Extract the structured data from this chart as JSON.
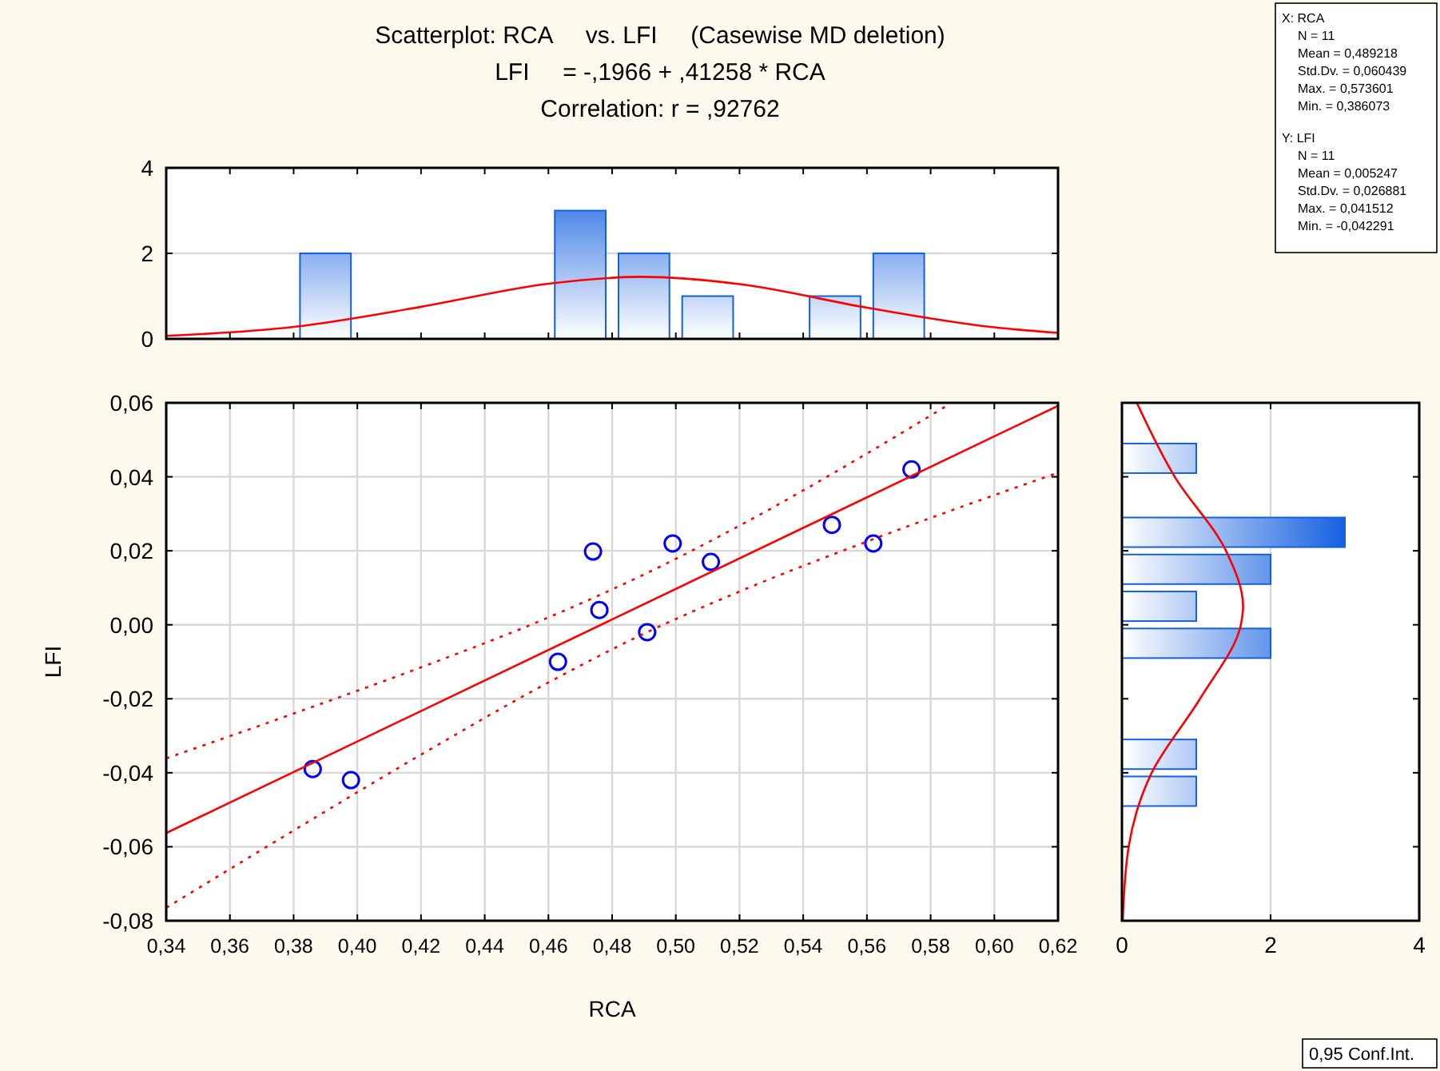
{
  "chart_data": [
    {
      "type": "scatter",
      "xlabel": "RCA",
      "ylabel": "LFI",
      "xlim": [
        0.34,
        0.62
      ],
      "xticks": [
        {
          "value": 0.34,
          "label": "0,34"
        },
        {
          "value": 0.36,
          "label": "0,36"
        },
        {
          "value": 0.38,
          "label": "0,38"
        },
        {
          "value": 0.4,
          "label": "0,40"
        },
        {
          "value": 0.42,
          "label": "0,42"
        },
        {
          "value": 0.44,
          "label": "0,44"
        },
        {
          "value": 0.46,
          "label": "0,46"
        },
        {
          "value": 0.48,
          "label": "0,48"
        },
        {
          "value": 0.5,
          "label": "0,50"
        },
        {
          "value": 0.52,
          "label": "0,52"
        },
        {
          "value": 0.54,
          "label": "0,54"
        },
        {
          "value": 0.56,
          "label": "0,56"
        },
        {
          "value": 0.58,
          "label": "0,58"
        },
        {
          "value": 0.6,
          "label": "0,60"
        },
        {
          "value": 0.62,
          "label": "0,62"
        }
      ],
      "ylim": [
        -0.08,
        0.06
      ],
      "yticks": [
        {
          "value": -0.08,
          "label": "-0,08"
        },
        {
          "value": -0.06,
          "label": "-0,06"
        },
        {
          "value": -0.04,
          "label": "-0,04"
        },
        {
          "value": -0.02,
          "label": "-0,02"
        },
        {
          "value": 0,
          "label": "0,00"
        },
        {
          "value": 0.02,
          "label": "0,02"
        },
        {
          "value": 0.04,
          "label": "0,04"
        },
        {
          "value": 0.06,
          "label": "0,06"
        }
      ],
      "grid": true,
      "annotations": [
        "0,95 Conf.Int."
      ],
      "series": [
        {
          "type": "scatter",
          "color": "#0000ff",
          "marker": "circle",
          "x": [
            0.386,
            0.398,
            0.463,
            0.474,
            0.476,
            0.491,
            0.499,
            0.511,
            0.549,
            0.562,
            0.574
          ],
          "values": [
            -0.039,
            -0.042,
            -0.01,
            0.0198,
            0.004,
            -0.002,
            0.022,
            0.017,
            0.027,
            0.022,
            0.042
          ]
        },
        {
          "type": "line",
          "color": "#ff0000",
          "line_style": "solid",
          "x": [
            0.34,
            0.62
          ],
          "values": [
            -0.0563,
            0.0592
          ]
        },
        {
          "type": "line",
          "color": "#ff0000",
          "line_style": "dotted",
          "x": [
            0.34,
            0.38,
            0.42,
            0.46,
            0.49,
            0.52,
            0.56,
            0.586
          ],
          "values": [
            -0.0361,
            -0.024,
            -0.0115,
            0.002,
            0.0136,
            0.0268,
            0.0463,
            0.0597
          ]
        },
        {
          "type": "line",
          "color": "#ff0000",
          "line_style": "dotted",
          "x": [
            0.34,
            0.38,
            0.42,
            0.46,
            0.49,
            0.52,
            0.56,
            0.62
          ],
          "values": [
            -0.0765,
            -0.0556,
            -0.0351,
            -0.0156,
            -0.0024,
            0.009,
            0.0225,
            0.0411
          ]
        }
      ]
    },
    {
      "type": "bar",
      "title": "Scatterplot: RCA     vs. LFI     (Casewise MD deletion)",
      "subtitle": "LFI     = -,1966 + ,41258 * RCA\nCorrelation: r = ,92762",
      "xlim": [
        0.34,
        0.62
      ],
      "xticks": [
        {
          "value": 0.34,
          "label": null
        },
        {
          "value": 0.36,
          "label": null
        },
        {
          "value": 0.38,
          "label": null
        },
        {
          "value": 0.4,
          "label": null
        },
        {
          "value": 0.42,
          "label": null
        },
        {
          "value": 0.44,
          "label": null
        },
        {
          "value": 0.46,
          "label": null
        },
        {
          "value": 0.48,
          "label": null
        },
        {
          "value": 0.5,
          "label": null
        },
        {
          "value": 0.52,
          "label": null
        },
        {
          "value": 0.54,
          "label": null
        },
        {
          "value": 0.56,
          "label": null
        },
        {
          "value": 0.58,
          "label": null
        },
        {
          "value": 0.6,
          "label": null
        },
        {
          "value": 0.62,
          "label": null
        }
      ],
      "ylim": [
        0,
        4
      ],
      "yticks": [
        0,
        2,
        4
      ],
      "grid": "y",
      "tick_labels": "y",
      "series": [
        {
          "type": "bar",
          "color": "#1560e0",
          "x": [
            0.39,
            0.47,
            0.49,
            0.51,
            0.55,
            0.57
          ],
          "values": [
            2,
            3,
            2,
            1,
            1,
            2
          ]
        },
        {
          "type": "line",
          "color": "#ff0000",
          "line_style": "solid",
          "x": [
            0.34,
            0.38,
            0.42,
            0.46,
            0.4892,
            0.52,
            0.56,
            0.6,
            0.62
          ],
          "values": [
            0.07,
            0.28,
            0.75,
            1.29,
            1.45,
            1.28,
            0.73,
            0.27,
            0.14
          ]
        }
      ]
    },
    {
      "type": "bar",
      "orientation": "horizontal",
      "xlim": [
        0,
        4
      ],
      "xticks": [
        0,
        2,
        4
      ],
      "ylim": [
        -0.08,
        0.06
      ],
      "yticks": [
        {
          "value": -0.08,
          "label": null
        },
        {
          "value": -0.06,
          "label": null
        },
        {
          "value": -0.04,
          "label": null
        },
        {
          "value": -0.02,
          "label": null
        },
        {
          "value": 0,
          "label": null
        },
        {
          "value": 0.02,
          "label": null
        },
        {
          "value": 0.04,
          "label": null
        },
        {
          "value": 0.06,
          "label": null
        }
      ],
      "grid": "x",
      "tick_labels": "x",
      "series": [
        {
          "type": "bar",
          "color": "#1560e0",
          "x": [
            0.045,
            0.025,
            0.015,
            0.005,
            -0.005,
            -0.035,
            -0.045
          ],
          "values": [
            1,
            3,
            2,
            1,
            2,
            1,
            1
          ]
        },
        {
          "type": "line",
          "color": "#ff0000",
          "line_style": "solid",
          "x": [
            -0.08,
            -0.06,
            -0.04,
            -0.02,
            0,
            0.005,
            0.02,
            0.04,
            0.06
          ],
          "values": [
            0.01,
            0.09,
            0.4,
            1.05,
            1.6,
            1.63,
            1.4,
            0.71,
            0.2
          ]
        }
      ]
    },
    {
      "type": "other",
      "annotations": [
        "X:  RCA",
        "N = 11",
        "Mean = 0,489218",
        "Std.Dv. = 0,060439",
        "Max. = 0,573601",
        "Min. = 0,386073",
        "Y:  LFI",
        "N = 11",
        "Mean = 0,005247",
        "Std.Dv. = 0,026881",
        "Max. = 0,041512",
        "Min. = -0,042291"
      ]
    }
  ]
}
